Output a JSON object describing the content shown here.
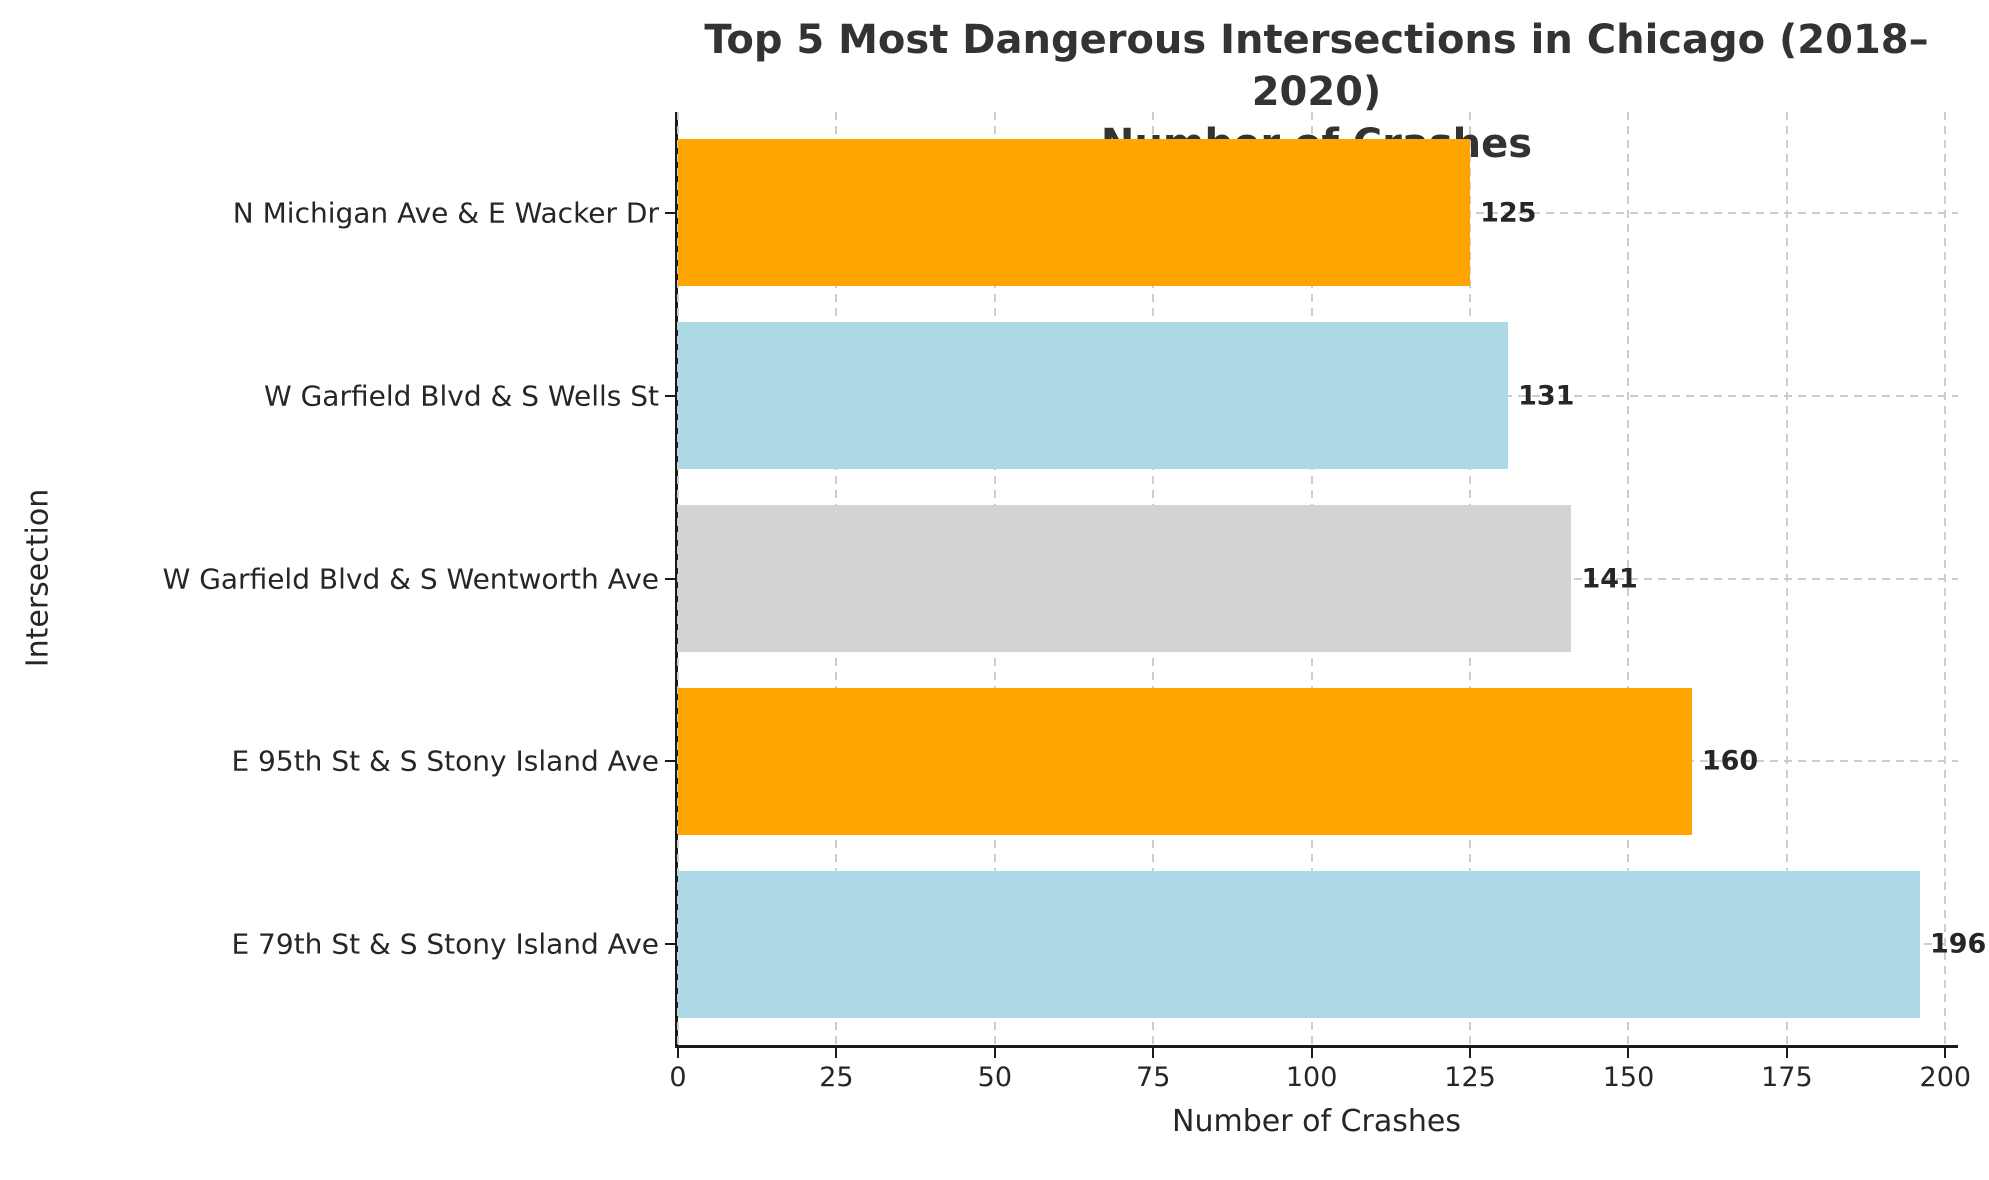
{
  "chart_data": {
    "type": "bar",
    "orientation": "horizontal",
    "title_line1": "Top 5 Most Dangerous Intersections in Chicago (2018–2020)",
    "title_line2": "Number of Crashes",
    "xlabel": "Number of Crashes",
    "ylabel": "Intersection",
    "categories": [
      "N Michigan Ave & E Wacker Dr",
      "W Garfield Blvd & S Wells St",
      "W Garfield Blvd & S Wentworth Ave",
      "E 95th St & S Stony Island Ave",
      "E 79th St & S Stony Island Ave"
    ],
    "values": [
      125,
      131,
      141,
      160,
      196
    ],
    "value_labels": [
      "125",
      "131",
      "141",
      "160",
      "196"
    ],
    "bar_colors": [
      "#FFA500",
      "#ADD8E6",
      "#D3D3D3",
      "#FFA500",
      "#ADD8E6"
    ],
    "x_ticks": [
      0,
      25,
      50,
      75,
      100,
      125,
      150,
      175,
      200
    ],
    "xlim": [
      0,
      202
    ],
    "bar_height_ratio": 0.8,
    "grid": true,
    "grid_style": "dashed",
    "grid_color": "#cdcdcd",
    "spine_color": "#1a1a1a",
    "value_label_color": "#262626",
    "background_color": "#ffffff"
  }
}
